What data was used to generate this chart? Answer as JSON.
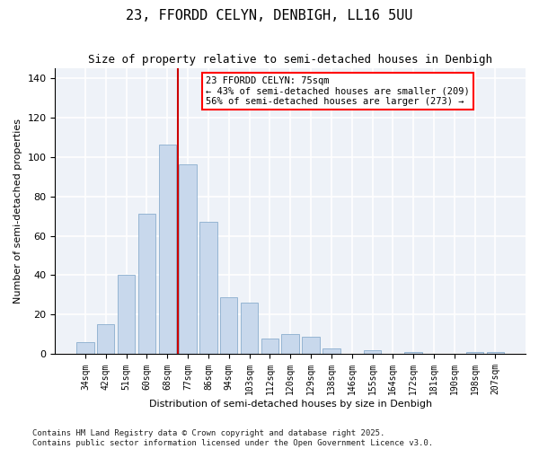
{
  "title": "23, FFORDD CELYN, DENBIGH, LL16 5UU",
  "subtitle": "Size of property relative to semi-detached houses in Denbigh",
  "xlabel": "Distribution of semi-detached houses by size in Denbigh",
  "ylabel": "Number of semi-detached properties",
  "categories": [
    "34sqm",
    "42sqm",
    "51sqm",
    "60sqm",
    "68sqm",
    "77sqm",
    "86sqm",
    "94sqm",
    "103sqm",
    "112sqm",
    "120sqm",
    "129sqm",
    "138sqm",
    "146sqm",
    "155sqm",
    "164sqm",
    "172sqm",
    "181sqm",
    "190sqm",
    "198sqm",
    "207sqm"
  ],
  "values": [
    6,
    15,
    40,
    71,
    106,
    96,
    67,
    29,
    26,
    8,
    10,
    9,
    3,
    0,
    2,
    0,
    1,
    0,
    0,
    1,
    1
  ],
  "bar_color": "#c8d8ec",
  "bar_edge_color": "#8aaece",
  "vline_x_index": 4.5,
  "vline_color": "#cc0000",
  "annotation_text": "23 FFORDD CELYN: 75sqm\n← 43% of semi-detached houses are smaller (209)\n56% of semi-detached houses are larger (273) →",
  "ylim": [
    0,
    145
  ],
  "yticks": [
    0,
    20,
    40,
    60,
    80,
    100,
    120,
    140
  ],
  "background_color": "#eef2f8",
  "grid_color": "#ffffff",
  "footer": "Contains HM Land Registry data © Crown copyright and database right 2025.\nContains public sector information licensed under the Open Government Licence v3.0.",
  "title_fontsize": 11,
  "subtitle_fontsize": 9,
  "label_fontsize": 8,
  "tick_fontsize": 7,
  "footer_fontsize": 6.5,
  "annot_fontsize": 7.5
}
